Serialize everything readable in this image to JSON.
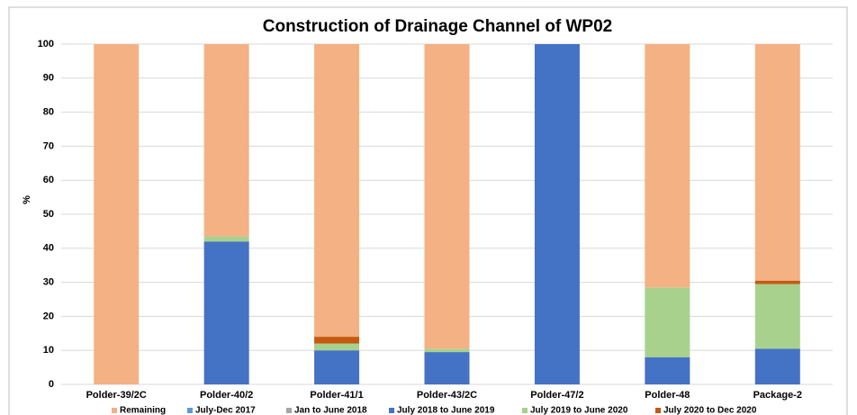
{
  "chart_data": {
    "type": "stacked_bar",
    "title": "Construction of Drainage Channel of WP02",
    "y_label": "%",
    "categories": [
      "Polder-39/2C",
      "Polder-40/2",
      "Polder-41/1",
      "Polder-43/2C",
      "Polder-47/2",
      "Polder-48",
      "Package-2"
    ],
    "series": [
      {
        "name": "Remaining",
        "color": "#f4b183",
        "values": [
          100,
          56.5,
          86,
          89.5,
          0,
          71.5,
          69.5
        ]
      },
      {
        "name": "July-Dec 2017",
        "color": "#5b9bd5",
        "values": [
          0,
          0,
          0,
          0,
          0,
          0,
          0
        ]
      },
      {
        "name": "Jan to June 2018",
        "color": "#a5a5a5",
        "values": [
          0,
          0,
          0,
          0,
          0,
          0,
          0
        ]
      },
      {
        "name": "July 2018 to June 2019",
        "color": "#4472c4",
        "values": [
          0,
          42,
          10,
          9.5,
          100,
          8,
          10.5
        ]
      },
      {
        "name": "July 2019 to June 2020",
        "color": "#a9d18e",
        "values": [
          0,
          1.5,
          2,
          1,
          0,
          20.5,
          19
        ]
      },
      {
        "name": "July 2020 to Dec 2020",
        "color": "#c55a11",
        "values": [
          0,
          0,
          2,
          0,
          0,
          0,
          1
        ]
      }
    ],
    "ylim": [
      0,
      100
    ],
    "yticks": [
      0,
      10,
      20,
      30,
      40,
      50,
      60,
      70,
      80,
      90,
      100
    ],
    "grid": true,
    "legend": "bottom"
  }
}
